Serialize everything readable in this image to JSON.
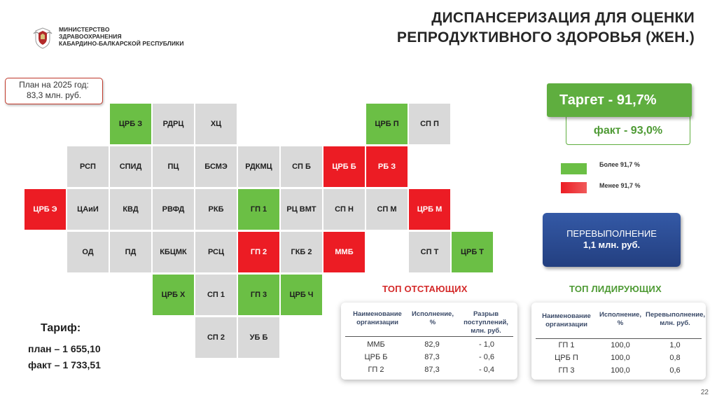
{
  "header": {
    "ministry_lines": [
      "МИНИСТЕРСТВО",
      "ЗДРАВООХРАНЕНИЯ",
      "КАБАРДИНО-БАЛКАРСКОЙ РЕСПУБЛИКИ"
    ],
    "title_line1": "ДИСПАНСЕРИЗАЦИЯ ДЛЯ ОЦЕНКИ",
    "title_line2": "РЕПРОДУКТИВНОГО ЗДОРОВЬЯ (ЖЕН.)"
  },
  "plan": {
    "line1": "План на 2025 год:",
    "line2": "83,3 млн. руб."
  },
  "colors": {
    "green": "#6bbf45",
    "red": "#ec1c24",
    "grey": "#d9d9d9",
    "blue": "#2b4c92"
  },
  "grid": [
    {
      "label": "ЦРБ З",
      "color": "green"
    },
    {
      "label": "РДРЦ",
      "color": "grey"
    },
    {
      "label": "ХЦ",
      "color": "grey"
    },
    {
      "label": "ЦРБ П",
      "color": "green"
    },
    {
      "label": "СП П",
      "color": "grey"
    },
    {
      "label": "РСП",
      "color": "grey"
    },
    {
      "label": "СПИД",
      "color": "grey"
    },
    {
      "label": "ПЦ",
      "color": "grey"
    },
    {
      "label": "БСМЭ",
      "color": "grey"
    },
    {
      "label": "РДКМЦ",
      "color": "grey"
    },
    {
      "label": "СП Б",
      "color": "grey"
    },
    {
      "label": "ЦРБ Б",
      "color": "red"
    },
    {
      "label": "РБ З",
      "color": "red"
    },
    {
      "label": "ЦРБ Э",
      "color": "red"
    },
    {
      "label": "ЦАиИ",
      "color": "grey"
    },
    {
      "label": "КВД",
      "color": "grey"
    },
    {
      "label": "РВФД",
      "color": "grey"
    },
    {
      "label": "РКБ",
      "color": "grey"
    },
    {
      "label": "ГП 1",
      "color": "green"
    },
    {
      "label": "РЦ ВМТ",
      "color": "grey"
    },
    {
      "label": "СП Н",
      "color": "grey"
    },
    {
      "label": "СП М",
      "color": "grey"
    },
    {
      "label": "ЦРБ М",
      "color": "red"
    },
    {
      "label": "ОД",
      "color": "grey"
    },
    {
      "label": "ПД",
      "color": "grey"
    },
    {
      "label": "КБЦМК",
      "color": "grey"
    },
    {
      "label": "РСЦ",
      "color": "grey"
    },
    {
      "label": "ГП 2",
      "color": "red"
    },
    {
      "label": "ГКБ 2",
      "color": "grey"
    },
    {
      "label": "ММБ",
      "color": "red"
    },
    {
      "label": "СП Т",
      "color": "grey"
    },
    {
      "label": "ЦРБ Т",
      "color": "green"
    },
    {
      "label": "ЦРБ Х",
      "color": "green"
    },
    {
      "label": "СП 1",
      "color": "grey"
    },
    {
      "label": "ГП 3",
      "color": "green"
    },
    {
      "label": "ЦРБ Ч",
      "color": "green"
    },
    {
      "label": "СП 2",
      "color": "grey"
    },
    {
      "label": "УБ Б",
      "color": "grey"
    }
  ],
  "target": {
    "text": "Таргет  -  91,7%"
  },
  "fact": {
    "text": "факт  -  93,0%"
  },
  "legend": {
    "above": "Более 91,7 %",
    "below": "Менее 91,7 %"
  },
  "overfulfillment": {
    "line1": "ПЕРЕВЫПОЛНЕНИЕ",
    "line2": "1,1 млн. руб."
  },
  "lagging": {
    "title": "ТОП ОТСТАЮЩИХ",
    "headers": [
      "Наименование организации",
      "Исполнение, %",
      "Разрыв поступлений, млн. руб."
    ],
    "rows": [
      [
        "ММБ",
        "82,9",
        "- 1,0"
      ],
      [
        "ЦРБ Б",
        "87,3",
        "- 0,6"
      ],
      [
        "ГП 2",
        "87,3",
        "- 0,4"
      ]
    ]
  },
  "leading": {
    "title": "ТОП ЛИДИРУЮЩИХ",
    "headers": [
      "Наименование организации",
      "Исполнение, %",
      "Перевыполнение, млн. руб."
    ],
    "rows": [
      [
        "ГП 1",
        "100,0",
        "1,0"
      ],
      [
        "ЦРБ П",
        "100,0",
        "0,8"
      ],
      [
        "ГП 3",
        "100,0",
        "0,6"
      ]
    ]
  },
  "tarif": {
    "title": "Тариф:",
    "plan": "план – 1 655,10",
    "fact": "факт – 1 733,51"
  },
  "page_number": "22"
}
